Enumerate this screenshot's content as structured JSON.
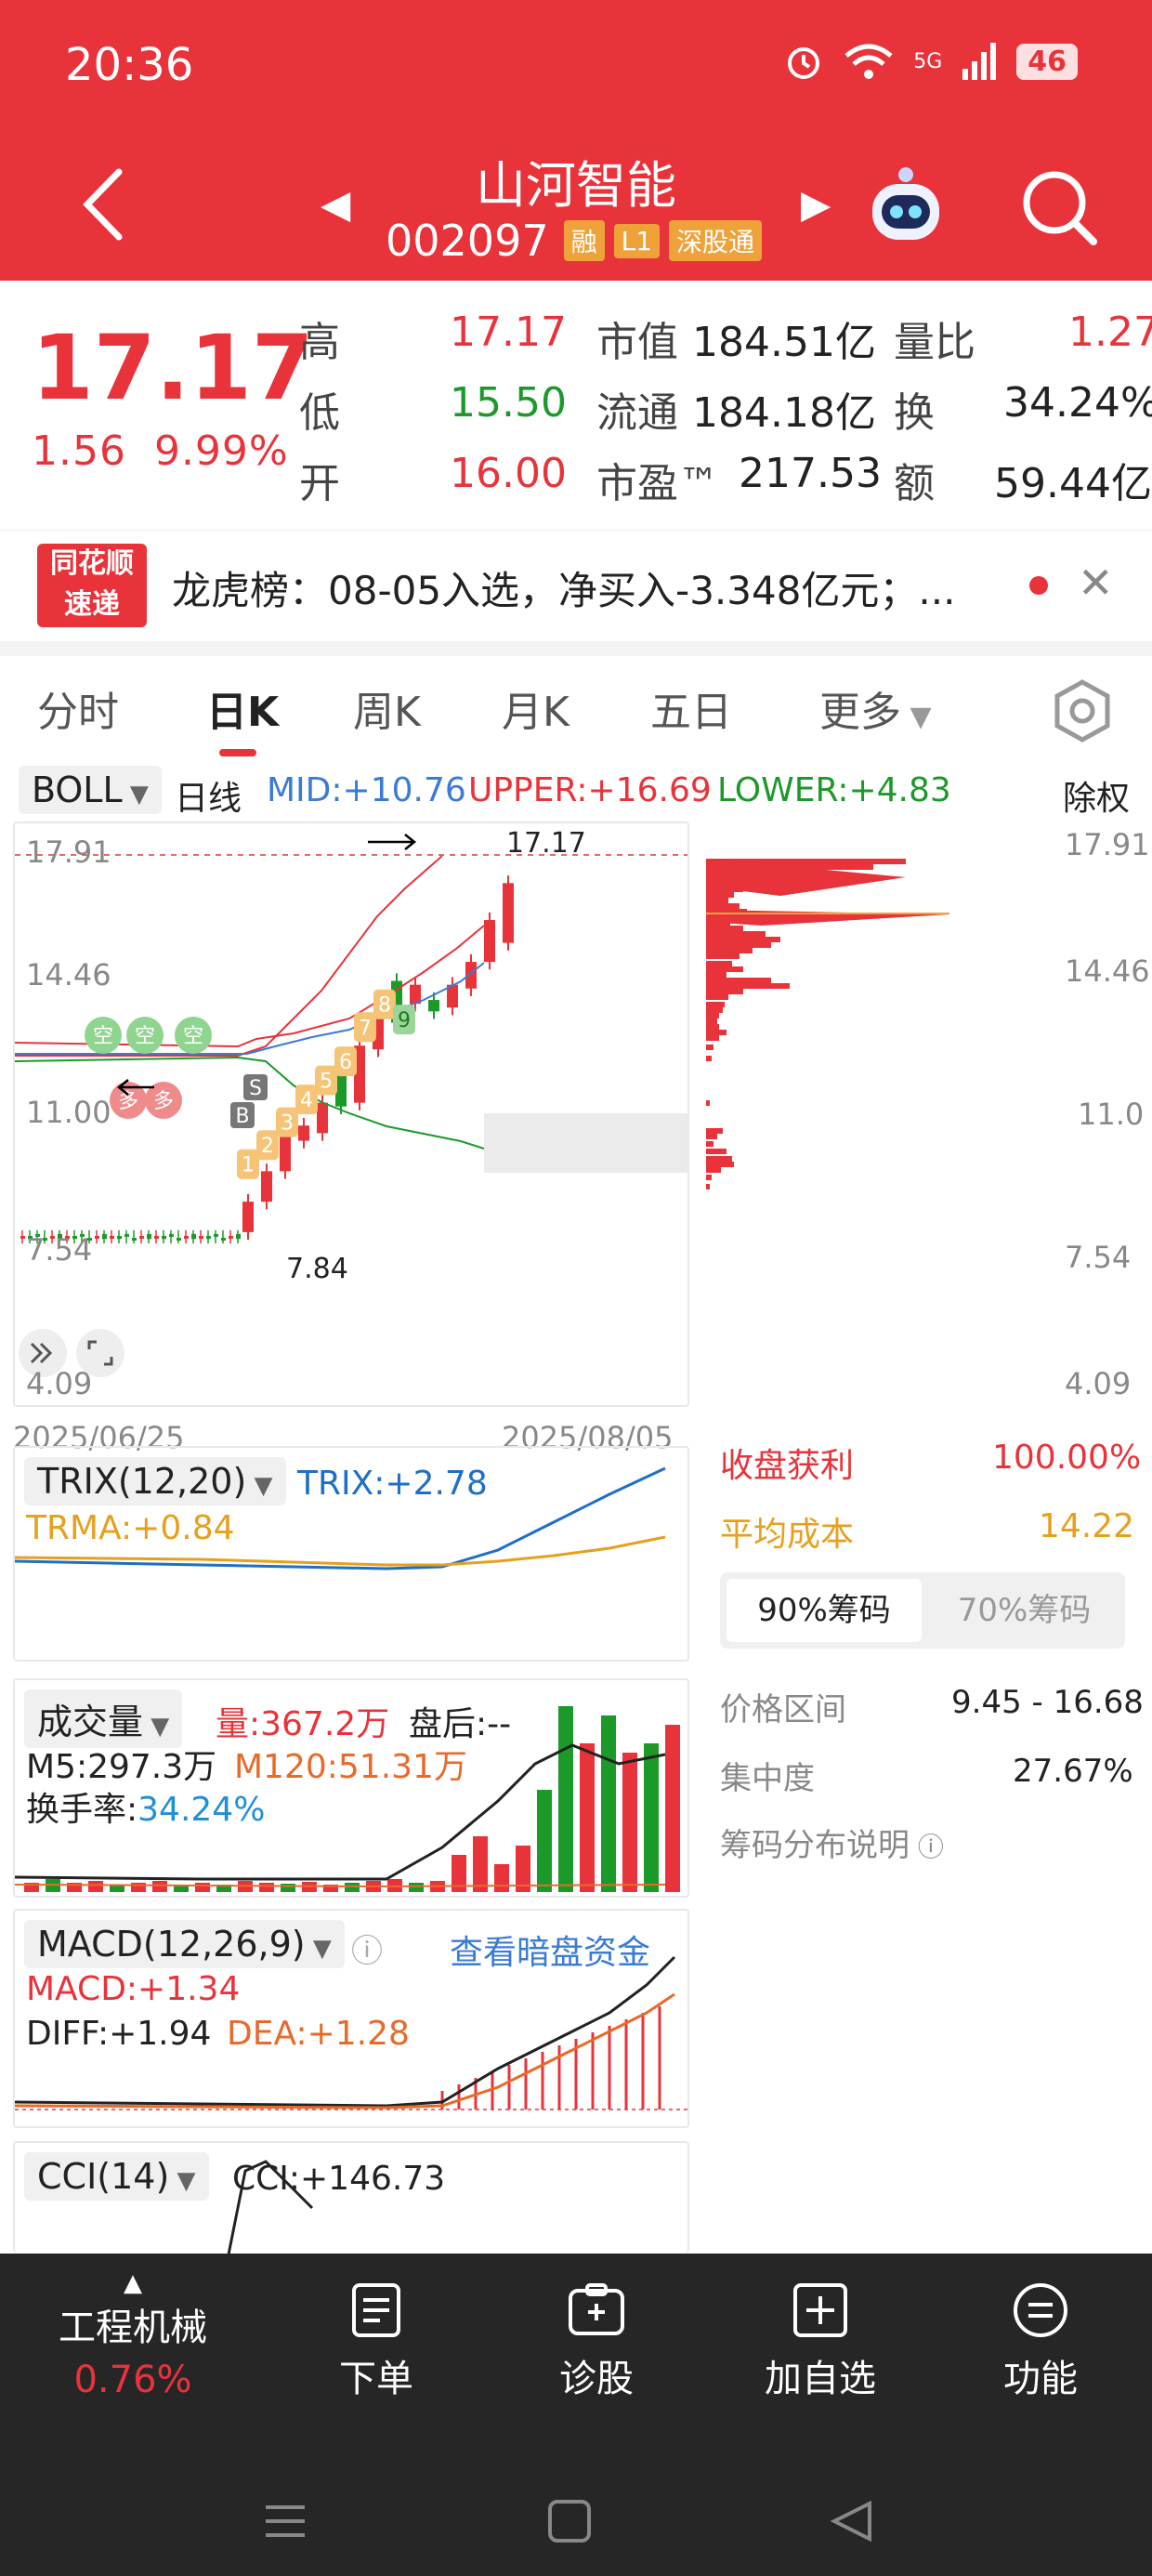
{
  "status": {
    "time": "20:36",
    "battery": "46",
    "network": "5G"
  },
  "stock": {
    "name": "山河智能",
    "code": "002097",
    "tags": [
      "融",
      "L1",
      "深股通"
    ],
    "price": "17.17",
    "change": "1.56",
    "change_pct": "9.99%"
  },
  "quote": {
    "high_label": "高",
    "high": "17.17",
    "low_label": "低",
    "low": "15.50",
    "open_label": "开",
    "open": "16.00",
    "mktcap_label": "市值",
    "mktcap": "184.51亿",
    "float_label": "流通",
    "float": "184.18亿",
    "pe_label": "市盈™",
    "pe": "217.53",
    "vol_ratio_label": "量比",
    "vol_ratio": "1.27",
    "turnover_label": "换",
    "turnover": "34.24%",
    "amount_label": "额",
    "amount": "59.44亿"
  },
  "news": {
    "logo_line1": "同花顺",
    "logo_line2": "速递",
    "text": "龙虎榜：08-05入选，净买入-3.348亿元；..."
  },
  "tabs": [
    "分时",
    "日K",
    "周K",
    "月K",
    "五日",
    "更多"
  ],
  "kline": {
    "indicator": "BOLL",
    "period": "日线",
    "mid": "MID:+10.76",
    "upper": "UPPER:+16.69",
    "lower": "LOWER:+4.83",
    "adjust": "除权",
    "y_ticks": [
      "17.91",
      "14.46",
      "11.00",
      "7.54",
      "4.09"
    ],
    "right_ticks": [
      "17.91",
      "14.46",
      "11.0",
      "7.54",
      "4.09"
    ],
    "high_marker": "17.17",
    "low_marker": "7.84",
    "date_start": "2025/06/25",
    "date_end": "2025/08/05",
    "signals": [
      "1",
      "2",
      "3",
      "4",
      "5",
      "6",
      "7",
      "8",
      "9"
    ],
    "empty_labels": [
      "空",
      "空",
      "空"
    ],
    "more_labels": [
      "多",
      "多"
    ],
    "buy_label": "B",
    "sell_label": "S"
  },
  "chip": {
    "profit_label": "收盘获利",
    "profit": "100.00%",
    "cost_label": "平均成本",
    "cost": "14.22",
    "tab_90": "90%筹码",
    "tab_70": "70%筹码",
    "range_label": "价格区间",
    "range": "9.45 - 16.68",
    "conc_label": "集中度",
    "conc": "27.67%",
    "help": "筹码分布说明"
  },
  "trix": {
    "name": "TRIX(12,20)",
    "trix": "TRIX:+2.78",
    "trma": "TRMA:+0.84"
  },
  "volume": {
    "name": "成交量",
    "vol": "量:367.2万",
    "after": "盘后:--",
    "m5": "M5:297.3万",
    "m120": "M120:51.31万",
    "turn_label": "换手率:",
    "turn": "34.24%"
  },
  "macd": {
    "name": "MACD(12,26,9)",
    "link": "查看暗盘资金",
    "macd": "MACD:+1.34",
    "diff": "DIFF:+1.94",
    "dea": "DEA:+1.28"
  },
  "cci": {
    "name": "CCI(14)",
    "value": "CCI:+146.73"
  },
  "bottom": {
    "sector": "工程机械",
    "sector_pct": "0.76%",
    "order": "下单",
    "diagnose": "诊股",
    "add": "加自选",
    "func": "功能"
  },
  "colors": {
    "up": "#e8333a",
    "down": "#1b9a2a",
    "mid": "#3a7bd5",
    "accent": "#f0a23a"
  }
}
